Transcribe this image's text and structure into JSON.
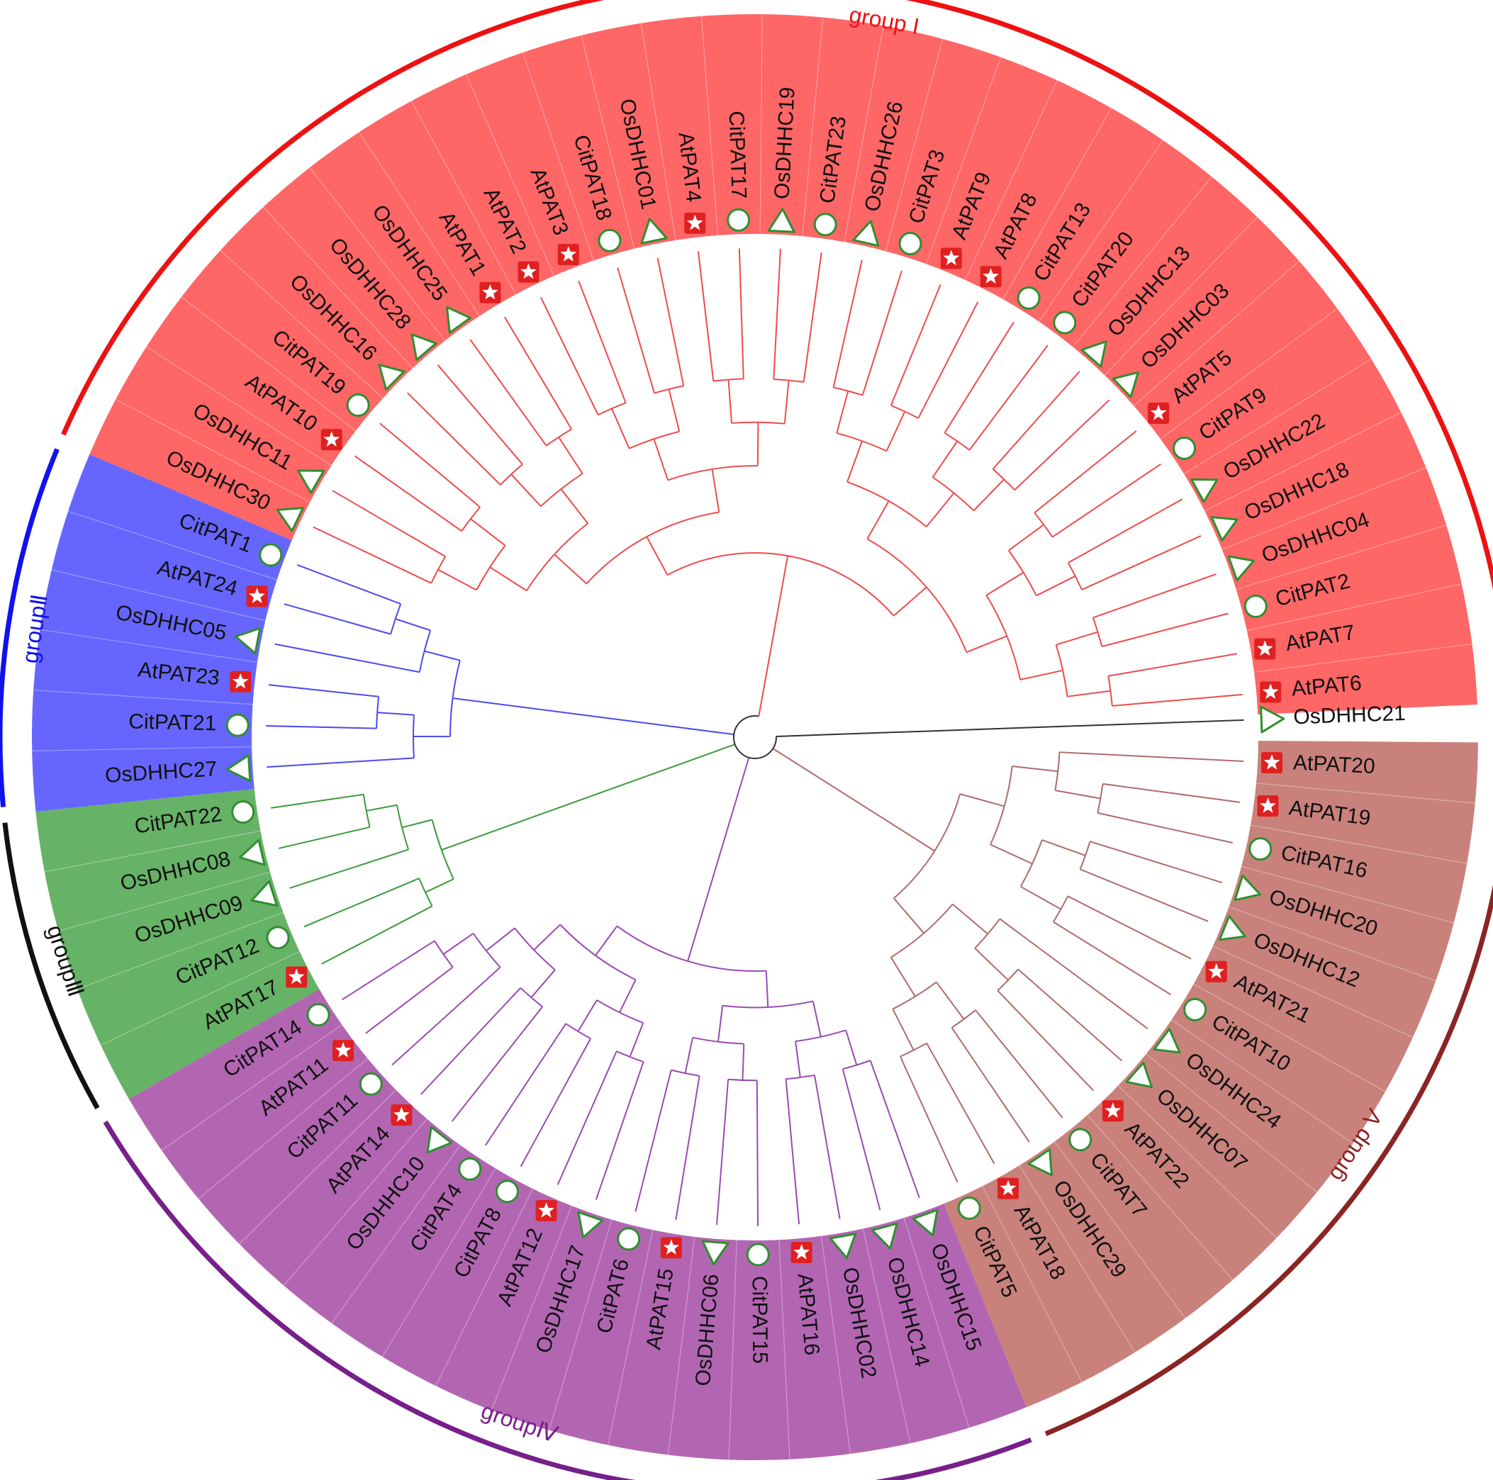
{
  "colors": {
    "group_I": "#ff6666",
    "group_II": "#6666ff",
    "group_III": "#66b266",
    "group_IV": "#b266b2",
    "group_V": "#c9817c",
    "arc_I": "#ee1111",
    "arc_II": "#1111ee",
    "arc_III": "#111111",
    "arc_IV": "#771f8a",
    "arc_V": "#8b2424",
    "branch_I": "#ee4b4b",
    "branch_II": "#4b4bee",
    "branch_III": "#3a9a3a",
    "branch_IV": "#9a4ab0",
    "branch_V": "#b06b6b",
    "branch_outgroup": "#333333",
    "triangle": "#2f8f2f",
    "circle": "#2f8f2f",
    "star": "#e02020"
  },
  "groups": [
    {
      "key": "I",
      "label": "group I",
      "color": "#ee1111"
    },
    {
      "key": "II",
      "label": "groupⅡ",
      "color": "#1111ee"
    },
    {
      "key": "III",
      "label": "groupⅢ",
      "color": "#111111"
    },
    {
      "key": "IV",
      "label": "groupⅣ",
      "color": "#771f8a"
    },
    {
      "key": "V",
      "label": "group V",
      "color": "#8b2424"
    }
  ],
  "leaves": [
    {
      "name": "AtPAT6",
      "group": "I",
      "marker": "star-icon"
    },
    {
      "name": "AtPAT7",
      "group": "I",
      "marker": "star-icon"
    },
    {
      "name": "CitPAT2",
      "group": "I",
      "marker": "circle-icon"
    },
    {
      "name": "OsDHHC04",
      "group": "I",
      "marker": "triangle-icon"
    },
    {
      "name": "OsDHHC18",
      "group": "I",
      "marker": "triangle-icon"
    },
    {
      "name": "OsDHHC22",
      "group": "I",
      "marker": "triangle-icon"
    },
    {
      "name": "CitPAT9",
      "group": "I",
      "marker": "circle-icon"
    },
    {
      "name": "AtPAT5",
      "group": "I",
      "marker": "star-icon"
    },
    {
      "name": "OsDHHC03",
      "group": "I",
      "marker": "triangle-icon"
    },
    {
      "name": "OsDHHC13",
      "group": "I",
      "marker": "triangle-icon"
    },
    {
      "name": "CitPAT20",
      "group": "I",
      "marker": "circle-icon"
    },
    {
      "name": "CitPAT13",
      "group": "I",
      "marker": "circle-icon"
    },
    {
      "name": "AtPAT8",
      "group": "I",
      "marker": "star-icon"
    },
    {
      "name": "AtPAT9",
      "group": "I",
      "marker": "star-icon"
    },
    {
      "name": "CitPAT3",
      "group": "I",
      "marker": "circle-icon"
    },
    {
      "name": "OsDHHC26",
      "group": "I",
      "marker": "triangle-icon"
    },
    {
      "name": "CitPAT23",
      "group": "I",
      "marker": "circle-icon"
    },
    {
      "name": "OsDHHC19",
      "group": "I",
      "marker": "triangle-icon"
    },
    {
      "name": "CitPAT17",
      "group": "I",
      "marker": "circle-icon"
    },
    {
      "name": "AtPAT4",
      "group": "I",
      "marker": "star-icon"
    },
    {
      "name": "OsDHHC01",
      "group": "I",
      "marker": "triangle-icon"
    },
    {
      "name": "CitPAT18",
      "group": "I",
      "marker": "circle-icon"
    },
    {
      "name": "AtPAT3",
      "group": "I",
      "marker": "star-icon"
    },
    {
      "name": "AtPAT2",
      "group": "I",
      "marker": "star-icon"
    },
    {
      "name": "AtPAT1",
      "group": "I",
      "marker": "star-icon"
    },
    {
      "name": "OsDHHC25",
      "group": "I",
      "marker": "triangle-icon"
    },
    {
      "name": "OsDHHC28",
      "group": "I",
      "marker": "triangle-icon"
    },
    {
      "name": "OsDHHC16",
      "group": "I",
      "marker": "triangle-icon"
    },
    {
      "name": "CitPAT19",
      "group": "I",
      "marker": "circle-icon"
    },
    {
      "name": "AtPAT10",
      "group": "I",
      "marker": "star-icon"
    },
    {
      "name": "OsDHHC11",
      "group": "I",
      "marker": "triangle-icon"
    },
    {
      "name": "OsDHHC30",
      "group": "I",
      "marker": "triangle-icon"
    },
    {
      "name": "CitPAT1",
      "group": "II",
      "marker": "circle-icon"
    },
    {
      "name": "AtPAT24",
      "group": "II",
      "marker": "star-icon"
    },
    {
      "name": "OsDHHC05",
      "group": "II",
      "marker": "triangle-icon"
    },
    {
      "name": "AtPAT23",
      "group": "II",
      "marker": "star-icon"
    },
    {
      "name": "CitPAT21",
      "group": "II",
      "marker": "circle-icon"
    },
    {
      "name": "OsDHHC27",
      "group": "II",
      "marker": "triangle-icon"
    },
    {
      "name": "CitPAT22",
      "group": "III",
      "marker": "circle-icon"
    },
    {
      "name": "OsDHHC08",
      "group": "III",
      "marker": "triangle-icon"
    },
    {
      "name": "OsDHHC09",
      "group": "III",
      "marker": "triangle-icon"
    },
    {
      "name": "CitPAT12",
      "group": "III",
      "marker": "circle-icon"
    },
    {
      "name": "AtPAT17",
      "group": "III",
      "marker": "star-icon"
    },
    {
      "name": "CitPAT14",
      "group": "IV",
      "marker": "circle-icon"
    },
    {
      "name": "AtPAT11",
      "group": "IV",
      "marker": "star-icon"
    },
    {
      "name": "CitPAT11",
      "group": "IV",
      "marker": "circle-icon"
    },
    {
      "name": "AtPAT14",
      "group": "IV",
      "marker": "star-icon"
    },
    {
      "name": "OsDHHC10",
      "group": "IV",
      "marker": "triangle-icon"
    },
    {
      "name": "CitPAT4",
      "group": "IV",
      "marker": "circle-icon"
    },
    {
      "name": "CitPAT8",
      "group": "IV",
      "marker": "circle-icon"
    },
    {
      "name": "AtPAT12",
      "group": "IV",
      "marker": "star-icon"
    },
    {
      "name": "OsDHHC17",
      "group": "IV",
      "marker": "triangle-icon"
    },
    {
      "name": "CitPAT6",
      "group": "IV",
      "marker": "circle-icon"
    },
    {
      "name": "AtPAT15",
      "group": "IV",
      "marker": "star-icon"
    },
    {
      "name": "OsDHHC06",
      "group": "IV",
      "marker": "triangle-icon"
    },
    {
      "name": "CitPAT15",
      "group": "IV",
      "marker": "circle-icon"
    },
    {
      "name": "AtPAT16",
      "group": "IV",
      "marker": "star-icon"
    },
    {
      "name": "OsDHHC02",
      "group": "IV",
      "marker": "triangle-icon"
    },
    {
      "name": "OsDHHC14",
      "group": "IV",
      "marker": "triangle-icon"
    },
    {
      "name": "OsDHHC15",
      "group": "IV",
      "marker": "triangle-icon"
    },
    {
      "name": "CitPAT5",
      "group": "V",
      "marker": "circle-icon"
    },
    {
      "name": "AtPAT18",
      "group": "V",
      "marker": "star-icon"
    },
    {
      "name": "OsDHHC29",
      "group": "V",
      "marker": "triangle-icon"
    },
    {
      "name": "CitPAT7",
      "group": "V",
      "marker": "circle-icon"
    },
    {
      "name": "AtPAT22",
      "group": "V",
      "marker": "star-icon"
    },
    {
      "name": "OsDHHC07",
      "group": "V",
      "marker": "triangle-icon"
    },
    {
      "name": "OsDHHC24",
      "group": "V",
      "marker": "triangle-icon"
    },
    {
      "name": "CitPAT10",
      "group": "V",
      "marker": "circle-icon"
    },
    {
      "name": "AtPAT21",
      "group": "V",
      "marker": "star-icon"
    },
    {
      "name": "OsDHHC12",
      "group": "V",
      "marker": "triangle-icon"
    },
    {
      "name": "OsDHHC20",
      "group": "V",
      "marker": "triangle-icon"
    },
    {
      "name": "CitPAT16",
      "group": "V",
      "marker": "circle-icon"
    },
    {
      "name": "AtPAT19",
      "group": "V",
      "marker": "star-icon"
    },
    {
      "name": "AtPAT20",
      "group": "V",
      "marker": "star-icon"
    },
    {
      "name": "OsDHHC21",
      "group": "outgroup",
      "marker": "triangle-icon"
    }
  ]
}
